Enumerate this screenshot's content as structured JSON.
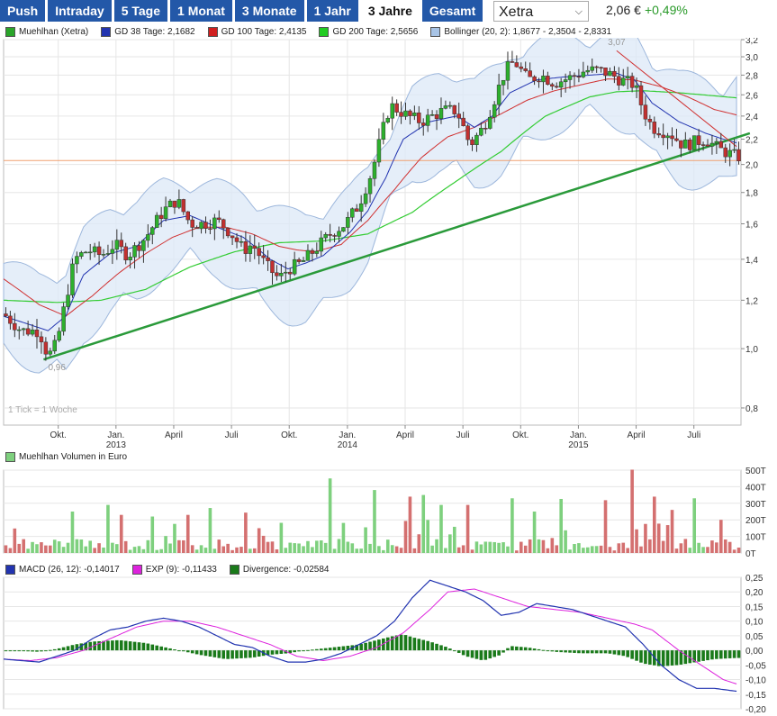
{
  "tabs": [
    {
      "label": "Push"
    },
    {
      "label": "Intraday"
    },
    {
      "label": "5 Tage"
    },
    {
      "label": "1 Monat"
    },
    {
      "label": "3 Monate"
    },
    {
      "label": "1 Jahr"
    },
    {
      "label": "3 Jahre",
      "active": true
    },
    {
      "label": "Gesamt"
    }
  ],
  "exchange": {
    "selected": "Xetra"
  },
  "quote": {
    "price": "2,06 €",
    "change": "+0,49%"
  },
  "legend_main": [
    {
      "label": "Muehlhan (Xetra)",
      "color": "#2aa52a"
    },
    {
      "label": "GD 38 Tage: 2,1682",
      "color": "#2234b0"
    },
    {
      "label": "GD 100 Tage: 2,4135",
      "color": "#d02020"
    },
    {
      "label": "GD 200 Tage: 2,5656",
      "color": "#22cc22"
    },
    {
      "label": "Bollinger (20, 2): 1,8677 - 2,3504 - 2,8331",
      "color": "#a8c4e6"
    }
  ],
  "legend_volume": [
    {
      "label": "Muehlhan Volumen in Euro",
      "color": "#7ed07e"
    }
  ],
  "legend_macd": [
    {
      "label": "MACD (26, 12): -0,14017",
      "color": "#2234b0"
    },
    {
      "label": "EXP (9): -0,11433",
      "color": "#dd22dd"
    },
    {
      "label": "Divergence: -0,02584",
      "color": "#1a7a1a"
    }
  ],
  "chart_data": [
    {
      "type": "candlestick",
      "title": "Muehlhan (Xetra)",
      "scale": "log",
      "ylim": [
        0.75,
        3.2
      ],
      "yticks": [
        "3,2",
        "3,0",
        "2,8",
        "2,6",
        "2,4",
        "2,2",
        "2,0",
        "1,8",
        "1,6",
        "1,4",
        "1,2",
        "1,0",
        "0,8"
      ],
      "ytick_values": [
        3.2,
        3.0,
        2.8,
        2.6,
        2.4,
        2.2,
        2.0,
        1.8,
        1.6,
        1.4,
        1.2,
        1.0,
        0.8
      ],
      "xticks": [
        {
          "label": "Okt.",
          "year": "",
          "w": 0.3
        },
        {
          "label": "Jan.",
          "year": "2013",
          "w": 13.3
        },
        {
          "label": "April",
          "year": "",
          "w": 26.3
        },
        {
          "label": "Juli",
          "year": "",
          "w": 39.3
        },
        {
          "label": "Okt.",
          "year": "",
          "w": 52.3
        },
        {
          "label": "Jan.",
          "year": "2014",
          "w": 65.4
        },
        {
          "label": "April",
          "year": "",
          "w": 78.4
        },
        {
          "label": "Juli",
          "year": "",
          "w": 91.4
        },
        {
          "label": "Okt.",
          "year": "",
          "w": 104.4
        },
        {
          "label": "Jan.",
          "year": "2015",
          "w": 117.4
        },
        {
          "label": "April",
          "year": "",
          "w": 130.4
        },
        {
          "label": "Juli",
          "year": "",
          "w": 143.4
        }
      ],
      "annotations": [
        {
          "text": "3,07",
          "w": 126,
          "v": 3.07
        },
        {
          "text": "0,96",
          "w": 0,
          "v": 0.96
        },
        {
          "text": "1 Tick = 1 Woche"
        }
      ],
      "current_price": 2.03,
      "trendlines": [
        {
          "name": "support",
          "from": [
            -3,
            0.96
          ],
          "to": [
            156,
            2.25
          ],
          "color": "#2a9a3a"
        },
        {
          "name": "resistance",
          "from": [
            126,
            3.07
          ],
          "to": [
            153,
            2.14
          ],
          "color": "#d03030"
        }
      ],
      "series": [
        {
          "name": "Muehlhan (Xetra)",
          "anchors_w": [
            -12,
            -8,
            -4,
            -2,
            0,
            2,
            4,
            7,
            10,
            13,
            16,
            20,
            24,
            27,
            30,
            33,
            36,
            39,
            42,
            44,
            47,
            50,
            52,
            55,
            58,
            62,
            65,
            68,
            71,
            75,
            79,
            82,
            87,
            90,
            93,
            96,
            98,
            101,
            103,
            106,
            109,
            112,
            116,
            119,
            122,
            125,
            127,
            130,
            132,
            134,
            138,
            141,
            146,
            149,
            153
          ],
          "anchors_v": [
            1.14,
            1.07,
            1.07,
            0.97,
            1.02,
            1.2,
            1.4,
            1.45,
            1.42,
            1.48,
            1.42,
            1.52,
            1.68,
            1.75,
            1.6,
            1.6,
            1.62,
            1.55,
            1.45,
            1.48,
            1.37,
            1.3,
            1.35,
            1.38,
            1.45,
            1.55,
            1.6,
            1.72,
            1.95,
            2.5,
            2.4,
            2.35,
            2.45,
            2.45,
            2.15,
            2.3,
            2.5,
            2.85,
            2.95,
            2.75,
            2.8,
            2.72,
            2.78,
            2.85,
            2.85,
            2.8,
            2.75,
            2.7,
            2.45,
            2.3,
            2.25,
            2.15,
            2.2,
            2.12,
            2.06
          ]
        },
        {
          "name": "GD 38 Tage: 2,1682",
          "anchors_w": [
            -12,
            -2,
            2,
            6,
            12,
            18,
            24,
            30,
            36,
            42,
            48,
            52,
            56,
            60,
            66,
            70,
            74,
            78,
            84,
            90,
            94,
            98,
            102,
            108,
            114,
            120,
            126,
            130,
            134,
            140,
            146,
            150,
            153
          ],
          "anchors_v": [
            1.13,
            1.07,
            1.13,
            1.32,
            1.43,
            1.47,
            1.62,
            1.65,
            1.58,
            1.52,
            1.4,
            1.35,
            1.38,
            1.42,
            1.55,
            1.68,
            1.9,
            2.2,
            2.35,
            2.4,
            2.3,
            2.4,
            2.62,
            2.75,
            2.78,
            2.8,
            2.82,
            2.75,
            2.52,
            2.35,
            2.25,
            2.2,
            2.17
          ]
        },
        {
          "name": "GD 100 Tage: 2,4135",
          "anchors_w": [
            -12,
            -4,
            2,
            8,
            14,
            20,
            26,
            32,
            38,
            44,
            50,
            54,
            58,
            64,
            70,
            76,
            82,
            88,
            94,
            100,
            106,
            112,
            118,
            124,
            130,
            136,
            142,
            148,
            153
          ],
          "anchors_v": [
            1.3,
            1.18,
            1.13,
            1.22,
            1.33,
            1.43,
            1.52,
            1.58,
            1.58,
            1.54,
            1.47,
            1.45,
            1.44,
            1.48,
            1.62,
            1.82,
            2.05,
            2.22,
            2.3,
            2.42,
            2.55,
            2.64,
            2.7,
            2.76,
            2.75,
            2.68,
            2.58,
            2.46,
            2.41
          ]
        },
        {
          "name": "GD 200 Tage: 2,5656",
          "anchors_w": [
            -12,
            0,
            10,
            20,
            30,
            40,
            50,
            60,
            70,
            80,
            90,
            100,
            110,
            120,
            126,
            132,
            140,
            148,
            153
          ],
          "anchors_v": [
            1.2,
            1.19,
            1.2,
            1.25,
            1.36,
            1.44,
            1.49,
            1.5,
            1.54,
            1.67,
            1.88,
            2.1,
            2.4,
            2.58,
            2.63,
            2.64,
            2.62,
            2.59,
            2.57
          ]
        },
        {
          "name": "Bollinger (20, 2): 1,8677 - 2,3504 - 2,8331",
          "anchors_w": [
            -12,
            -4,
            2,
            6,
            12,
            18,
            24,
            30,
            36,
            42,
            46,
            52,
            56,
            60,
            66,
            70,
            76,
            80,
            86,
            90,
            94,
            100,
            106,
            112,
            118,
            124,
            130,
            134,
            140,
            146,
            150,
            153
          ],
          "anchors_v": [
            1.2,
            1.12,
            1.12,
            1.3,
            1.42,
            1.47,
            1.6,
            1.63,
            1.6,
            1.52,
            1.45,
            1.4,
            1.38,
            1.42,
            1.55,
            1.68,
            2.05,
            2.28,
            2.38,
            2.38,
            2.3,
            2.42,
            2.65,
            2.77,
            2.8,
            2.82,
            2.77,
            2.5,
            2.35,
            2.3,
            2.25,
            2.35
          ]
        }
      ]
    },
    {
      "type": "bar",
      "title": "Muehlhan Volumen in Euro",
      "ylim": [
        0,
        500
      ],
      "unit": "T",
      "yticks": [
        "500T",
        "400T",
        "300T",
        "200T",
        "100T",
        "0T"
      ],
      "ytick_values": [
        500,
        400,
        300,
        200,
        100,
        0
      ],
      "spikes_w": [
        3,
        11,
        14,
        21,
        29,
        34,
        42,
        61,
        71,
        79,
        82,
        86,
        92,
        102,
        107,
        113,
        123,
        129,
        134,
        138,
        143,
        149
      ],
      "spikes_v": [
        250,
        290,
        230,
        220,
        230,
        160,
        180,
        450,
        380,
        340,
        350,
        290,
        290,
        330,
        250,
        190,
        190,
        370,
        340,
        260,
        330,
        200
      ]
    },
    {
      "type": "line",
      "title": "MACD (26, 12)",
      "ylim": [
        -0.2,
        0.25
      ],
      "yticks": [
        "0,25",
        "0,20",
        "0,15",
        "0,10",
        "0,05",
        "0,00",
        "-0,05",
        "-0,10",
        "-0,15",
        "-0,20"
      ],
      "ytick_values": [
        0.25,
        0.2,
        0.15,
        0.1,
        0.05,
        0,
        -0.05,
        -0.1,
        -0.15,
        -0.2
      ],
      "series": [
        {
          "name": "MACD (26, 12): -0,14017",
          "anchors_w": [
            -12,
            -8,
            -4,
            0,
            4,
            8,
            12,
            16,
            20,
            24,
            28,
            32,
            36,
            40,
            44,
            48,
            52,
            56,
            60,
            64,
            68,
            72,
            76,
            80,
            84,
            88,
            92,
            96,
            100,
            104,
            108,
            112,
            116,
            120,
            124,
            128,
            132,
            136,
            140,
            144,
            148,
            153
          ],
          "anchors_v": [
            -0.03,
            -0.035,
            -0.04,
            -0.02,
            0.0,
            0.04,
            0.07,
            0.08,
            0.1,
            0.11,
            0.1,
            0.08,
            0.05,
            0.02,
            0.01,
            -0.02,
            -0.04,
            -0.04,
            -0.03,
            -0.01,
            0.02,
            0.05,
            0.1,
            0.18,
            0.24,
            0.22,
            0.2,
            0.17,
            0.12,
            0.13,
            0.16,
            0.15,
            0.14,
            0.12,
            0.1,
            0.08,
            0.02,
            -0.05,
            -0.1,
            -0.13,
            -0.13,
            -0.14
          ]
        },
        {
          "name": "EXP (9): -0,11433",
          "anchors_w": [
            -12,
            -6,
            0,
            6,
            12,
            18,
            24,
            30,
            36,
            42,
            48,
            54,
            60,
            66,
            72,
            78,
            84,
            88,
            94,
            100,
            106,
            112,
            118,
            124,
            130,
            134,
            140,
            146,
            150,
            153
          ],
          "anchors_v": [
            -0.03,
            -0.035,
            -0.025,
            0.0,
            0.04,
            0.08,
            0.1,
            0.1,
            0.08,
            0.05,
            0.02,
            -0.02,
            -0.035,
            -0.02,
            0.01,
            0.06,
            0.14,
            0.2,
            0.21,
            0.18,
            0.15,
            0.14,
            0.13,
            0.11,
            0.09,
            0.07,
            0.0,
            -0.06,
            -0.1,
            -0.115
          ]
        },
        {
          "name": "Divergence: -0,02584",
          "anchors_w": [
            -12,
            -4,
            0,
            4,
            8,
            14,
            20,
            26,
            32,
            38,
            44,
            48,
            52,
            56,
            62,
            68,
            72,
            76,
            78,
            80,
            84,
            88,
            92,
            96,
            100,
            102,
            106,
            112,
            118,
            124,
            128,
            132,
            136,
            140,
            144,
            148,
            153
          ],
          "anchors_v": [
            0.0,
            -0.005,
            0.005,
            0.02,
            0.03,
            0.035,
            0.025,
            0.005,
            -0.015,
            -0.03,
            -0.025,
            -0.015,
            -0.01,
            0.0,
            0.01,
            0.02,
            0.035,
            0.05,
            0.055,
            0.045,
            0.03,
            0.01,
            -0.02,
            -0.035,
            -0.015,
            0.015,
            0.01,
            -0.005,
            -0.01,
            -0.01,
            -0.02,
            -0.045,
            -0.055,
            -0.05,
            -0.04,
            -0.03,
            -0.026
          ]
        }
      ]
    }
  ]
}
